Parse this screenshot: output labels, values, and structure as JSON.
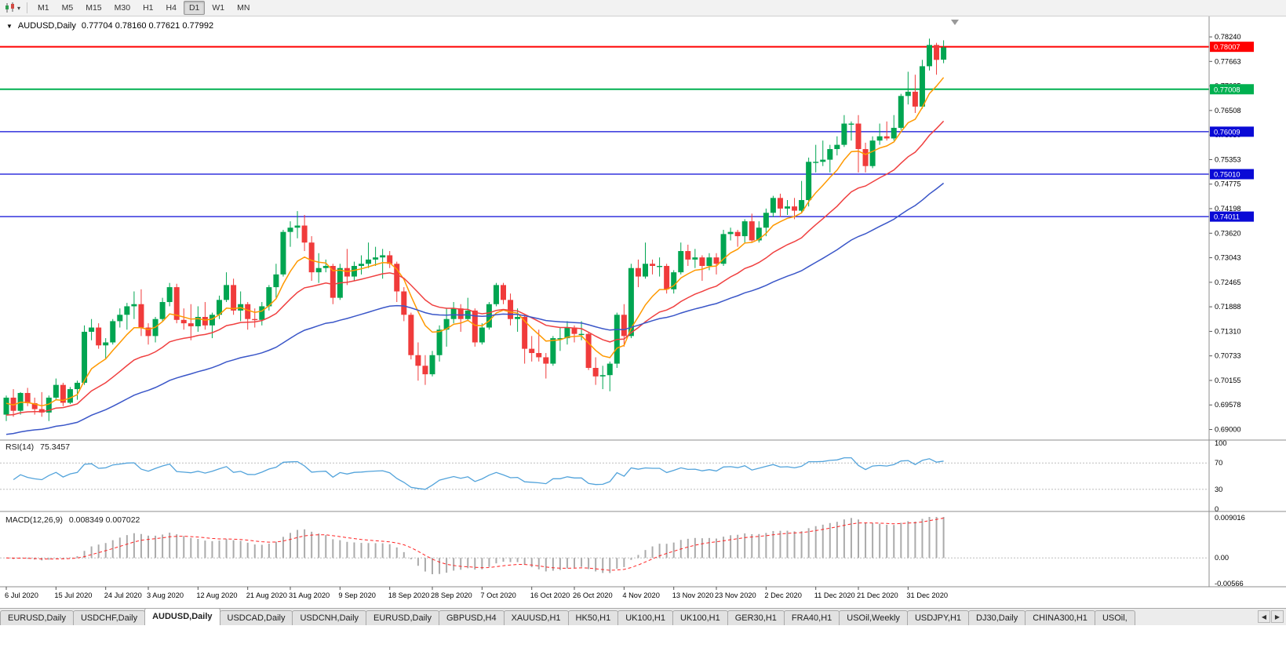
{
  "toolbar": {
    "timeframes": [
      "M1",
      "M5",
      "M15",
      "M30",
      "H1",
      "H4",
      "D1",
      "W1",
      "MN"
    ],
    "active_timeframe": "D1"
  },
  "icons": {
    "one_click_arrow": "▼",
    "chart_dropdown_caret": "▾",
    "tab_scroll_left": "◀",
    "tab_scroll_right": "▶"
  },
  "chart_data": {
    "type": "candlestick",
    "title_symbol": "AUDUSD,Daily",
    "title_ohlc": "0.77704 0.78160 0.77621 0.77992",
    "current_bar": {
      "open": "0.77704",
      "high": "0.78160",
      "low": "0.77621",
      "close": "0.77992"
    },
    "colors": {
      "up": "#00A551",
      "down": "#F03B3B",
      "separator": "#8e8e8e",
      "axis_text": "#000000",
      "level_dash": "#bdbdbd"
    },
    "y_axis": {
      "min": 0.6877,
      "max": 0.7861,
      "tick_labels": [
        "0.78240",
        "0.77663",
        "0.77085",
        "0.76508",
        "0.75930",
        "0.75353",
        "0.74775",
        "0.74198",
        "0.73620",
        "0.73043",
        "0.72465",
        "0.71888",
        "0.71310",
        "0.70733",
        "0.70155",
        "0.69578",
        "0.69000"
      ]
    },
    "x_axis": {
      "labels": [
        {
          "i": 0,
          "t": "6 Jul 2020"
        },
        {
          "i": 7,
          "t": "15 Jul 2020"
        },
        {
          "i": 14,
          "t": "24 Jul 2020"
        },
        {
          "i": 20,
          "t": "3 Aug 2020"
        },
        {
          "i": 27,
          "t": "12 Aug 2020"
        },
        {
          "i": 34,
          "t": "21 Aug 2020"
        },
        {
          "i": 40,
          "t": "31 Aug 2020"
        },
        {
          "i": 47,
          "t": "9 Sep 2020"
        },
        {
          "i": 54,
          "t": "18 Sep 2020"
        },
        {
          "i": 60,
          "t": "28 Sep 2020"
        },
        {
          "i": 67,
          "t": "7 Oct 2020"
        },
        {
          "i": 74,
          "t": "16 Oct 2020"
        },
        {
          "i": 80,
          "t": "26 Oct 2020"
        },
        {
          "i": 87,
          "t": "4 Nov 2020"
        },
        {
          "i": 94,
          "t": "13 Nov 2020"
        },
        {
          "i": 100,
          "t": "23 Nov 2020"
        },
        {
          "i": 107,
          "t": "2 Dec 2020"
        },
        {
          "i": 114,
          "t": "11 Dec 2020"
        },
        {
          "i": 120,
          "t": "21 Dec 2020"
        },
        {
          "i": 127,
          "t": "31 Dec 2020"
        }
      ]
    },
    "horizontal_lines": [
      {
        "value": 0.78007,
        "label": "0.78007",
        "color": "#FF0000",
        "width": 2
      },
      {
        "value": 0.77008,
        "label": "0.77008",
        "color": "#00B050",
        "width": 2
      },
      {
        "value": 0.76009,
        "label": "0.76009",
        "color": "#0A0AD6",
        "width": 1.3
      },
      {
        "value": 0.7501,
        "label": "0.75010",
        "color": "#0A0AD6",
        "width": 1.3
      },
      {
        "value": 0.74011,
        "label": "0.74011",
        "color": "#0A0AD6",
        "width": 1.3
      }
    ],
    "moving_averages": [
      {
        "period": 8,
        "color": "#FF9900",
        "seed": 0.6958
      },
      {
        "period": 21,
        "color": "#F04040",
        "seed": 0.693
      },
      {
        "period": 50,
        "color": "#3A56C8",
        "seed": 0.6885
      }
    ],
    "candles": [
      [
        0.6935,
        0.698,
        0.692,
        0.6975
      ],
      [
        0.6975,
        0.6995,
        0.693,
        0.6944
      ],
      [
        0.6944,
        0.6988,
        0.6935,
        0.6986
      ],
      [
        0.6986,
        0.6998,
        0.6955,
        0.6962
      ],
      [
        0.6962,
        0.6975,
        0.6935,
        0.6948
      ],
      [
        0.6948,
        0.6988,
        0.693,
        0.694
      ],
      [
        0.694,
        0.698,
        0.692,
        0.6975
      ],
      [
        0.6975,
        0.702,
        0.697,
        0.7005
      ],
      [
        0.7005,
        0.701,
        0.6955,
        0.6963
      ],
      [
        0.6963,
        0.7,
        0.696,
        0.6995
      ],
      [
        0.6995,
        0.7015,
        0.697,
        0.701
      ],
      [
        0.701,
        0.7145,
        0.7005,
        0.713
      ],
      [
        0.713,
        0.716,
        0.711,
        0.714
      ],
      [
        0.714,
        0.715,
        0.709,
        0.7098
      ],
      [
        0.7098,
        0.7115,
        0.7065,
        0.7105
      ],
      [
        0.7105,
        0.716,
        0.71,
        0.7155
      ],
      [
        0.7155,
        0.7185,
        0.714,
        0.717
      ],
      [
        0.717,
        0.7198,
        0.7135,
        0.719
      ],
      [
        0.719,
        0.7225,
        0.716,
        0.7195
      ],
      [
        0.7195,
        0.723,
        0.712,
        0.714
      ],
      [
        0.714,
        0.715,
        0.71,
        0.712
      ],
      [
        0.712,
        0.7165,
        0.7105,
        0.716
      ],
      [
        0.716,
        0.721,
        0.7155,
        0.72
      ],
      [
        0.72,
        0.7245,
        0.719,
        0.7235
      ],
      [
        0.7235,
        0.7243,
        0.715,
        0.7158
      ],
      [
        0.7158,
        0.7185,
        0.7135,
        0.715
      ],
      [
        0.715,
        0.7195,
        0.711,
        0.7143
      ],
      [
        0.7143,
        0.719,
        0.713,
        0.7165
      ],
      [
        0.7165,
        0.72,
        0.7135,
        0.7145
      ],
      [
        0.7145,
        0.7175,
        0.7115,
        0.717
      ],
      [
        0.717,
        0.7215,
        0.716,
        0.7205
      ],
      [
        0.7205,
        0.727,
        0.72,
        0.724
      ],
      [
        0.724,
        0.7255,
        0.717,
        0.718
      ],
      [
        0.718,
        0.7225,
        0.7155,
        0.7195
      ],
      [
        0.7195,
        0.72,
        0.7135,
        0.716
      ],
      [
        0.716,
        0.7185,
        0.714,
        0.7158
      ],
      [
        0.7158,
        0.72,
        0.7145,
        0.719
      ],
      [
        0.719,
        0.724,
        0.718,
        0.7235
      ],
      [
        0.7235,
        0.729,
        0.721,
        0.7265
      ],
      [
        0.7265,
        0.737,
        0.726,
        0.7365
      ],
      [
        0.7365,
        0.739,
        0.733,
        0.7375
      ],
      [
        0.7375,
        0.7414,
        0.735,
        0.738
      ],
      [
        0.738,
        0.7405,
        0.732,
        0.734
      ],
      [
        0.734,
        0.7355,
        0.725,
        0.727
      ],
      [
        0.727,
        0.7315,
        0.7245,
        0.728
      ],
      [
        0.728,
        0.73,
        0.727,
        0.7285
      ],
      [
        0.7285,
        0.729,
        0.7195,
        0.721
      ],
      [
        0.721,
        0.729,
        0.7205,
        0.728
      ],
      [
        0.728,
        0.7325,
        0.724,
        0.726
      ],
      [
        0.726,
        0.7295,
        0.725,
        0.7285
      ],
      [
        0.7285,
        0.731,
        0.7265,
        0.729
      ],
      [
        0.729,
        0.734,
        0.728,
        0.73
      ],
      [
        0.73,
        0.733,
        0.7285,
        0.7305
      ],
      [
        0.7305,
        0.7325,
        0.7255,
        0.731
      ],
      [
        0.731,
        0.732,
        0.728,
        0.729
      ],
      [
        0.729,
        0.7295,
        0.72,
        0.7225
      ],
      [
        0.7225,
        0.7235,
        0.7155,
        0.717
      ],
      [
        0.717,
        0.7175,
        0.7065,
        0.7075
      ],
      [
        0.7075,
        0.7105,
        0.7015,
        0.705
      ],
      [
        0.705,
        0.7075,
        0.7005,
        0.703
      ],
      [
        0.703,
        0.7085,
        0.7025,
        0.7075
      ],
      [
        0.7075,
        0.7145,
        0.706,
        0.7135
      ],
      [
        0.7135,
        0.7185,
        0.7095,
        0.716
      ],
      [
        0.716,
        0.72,
        0.715,
        0.7185
      ],
      [
        0.7185,
        0.7195,
        0.713,
        0.716
      ],
      [
        0.716,
        0.721,
        0.7155,
        0.718
      ],
      [
        0.718,
        0.7185,
        0.7095,
        0.7105
      ],
      [
        0.7105,
        0.715,
        0.71,
        0.714
      ],
      [
        0.714,
        0.72,
        0.7135,
        0.7195
      ],
      [
        0.7195,
        0.7245,
        0.719,
        0.724
      ],
      [
        0.724,
        0.7245,
        0.7195,
        0.7205
      ],
      [
        0.7205,
        0.722,
        0.7145,
        0.716
      ],
      [
        0.716,
        0.7185,
        0.713,
        0.7165
      ],
      [
        0.7165,
        0.717,
        0.7055,
        0.709
      ],
      [
        0.709,
        0.712,
        0.706,
        0.708
      ],
      [
        0.708,
        0.7135,
        0.706,
        0.707
      ],
      [
        0.707,
        0.708,
        0.702,
        0.7055
      ],
      [
        0.7055,
        0.712,
        0.705,
        0.7115
      ],
      [
        0.7115,
        0.714,
        0.7085,
        0.7115
      ],
      [
        0.7115,
        0.7155,
        0.71,
        0.714
      ],
      [
        0.714,
        0.7145,
        0.7105,
        0.7125
      ],
      [
        0.7125,
        0.7155,
        0.711,
        0.7125
      ],
      [
        0.7125,
        0.713,
        0.704,
        0.7045
      ],
      [
        0.7045,
        0.707,
        0.7005,
        0.7025
      ],
      [
        0.7025,
        0.705,
        0.6995,
        0.7028
      ],
      [
        0.7028,
        0.706,
        0.699,
        0.7055
      ],
      [
        0.7055,
        0.7175,
        0.7045,
        0.717
      ],
      [
        0.717,
        0.7195,
        0.7095,
        0.712
      ],
      [
        0.712,
        0.729,
        0.7115,
        0.728
      ],
      [
        0.728,
        0.73,
        0.7235,
        0.726
      ],
      [
        0.726,
        0.734,
        0.7255,
        0.729
      ],
      [
        0.729,
        0.73,
        0.7265,
        0.7285
      ],
      [
        0.7285,
        0.7305,
        0.726,
        0.7285
      ],
      [
        0.7285,
        0.729,
        0.722,
        0.723
      ],
      [
        0.723,
        0.7275,
        0.722,
        0.727
      ],
      [
        0.727,
        0.734,
        0.7265,
        0.732
      ],
      [
        0.732,
        0.7335,
        0.7285,
        0.73
      ],
      [
        0.73,
        0.7325,
        0.728,
        0.7305
      ],
      [
        0.7305,
        0.731,
        0.725,
        0.7285
      ],
      [
        0.7285,
        0.7315,
        0.7275,
        0.7305
      ],
      [
        0.7305,
        0.7315,
        0.7265,
        0.729
      ],
      [
        0.729,
        0.737,
        0.7285,
        0.736
      ],
      [
        0.736,
        0.7375,
        0.7345,
        0.7365
      ],
      [
        0.7365,
        0.737,
        0.733,
        0.7355
      ],
      [
        0.7355,
        0.7395,
        0.734,
        0.739
      ],
      [
        0.739,
        0.7408,
        0.734,
        0.7345
      ],
      [
        0.7345,
        0.739,
        0.734,
        0.7375
      ],
      [
        0.7375,
        0.742,
        0.7355,
        0.741
      ],
      [
        0.741,
        0.745,
        0.74,
        0.7445
      ],
      [
        0.7445,
        0.7455,
        0.74,
        0.742
      ],
      [
        0.742,
        0.744,
        0.7405,
        0.7425
      ],
      [
        0.7425,
        0.7445,
        0.7395,
        0.7415
      ],
      [
        0.7415,
        0.7485,
        0.741,
        0.744
      ],
      [
        0.744,
        0.754,
        0.7425,
        0.753
      ],
      [
        0.753,
        0.757,
        0.7505,
        0.753
      ],
      [
        0.753,
        0.758,
        0.752,
        0.7535
      ],
      [
        0.7535,
        0.757,
        0.7505,
        0.756
      ],
      [
        0.756,
        0.759,
        0.7545,
        0.757
      ],
      [
        0.757,
        0.764,
        0.7565,
        0.762
      ],
      [
        0.762,
        0.7625,
        0.758,
        0.762
      ],
      [
        0.762,
        0.764,
        0.7505,
        0.756
      ],
      [
        0.756,
        0.7575,
        0.7505,
        0.752
      ],
      [
        0.752,
        0.759,
        0.7515,
        0.758
      ],
      [
        0.758,
        0.762,
        0.757,
        0.759
      ],
      [
        0.759,
        0.7625,
        0.758,
        0.7585
      ],
      [
        0.7585,
        0.764,
        0.758,
        0.761
      ],
      [
        0.761,
        0.769,
        0.7605,
        0.7685
      ],
      [
        0.7685,
        0.7742,
        0.7665,
        0.7695
      ],
      [
        0.7695,
        0.7735,
        0.7645,
        0.766
      ],
      [
        0.766,
        0.777,
        0.7655,
        0.7755
      ],
      [
        0.7755,
        0.782,
        0.7745,
        0.7805
      ],
      [
        0.7805,
        0.781,
        0.7735,
        0.777
      ],
      [
        0.77704,
        0.7816,
        0.77621,
        0.77992
      ]
    ],
    "rsi": {
      "label": "RSI(14)",
      "current": "75.3457",
      "period": 14,
      "levels": [
        70,
        30
      ],
      "axis_labels": [
        "100",
        "70",
        "30",
        "0"
      ],
      "range": [
        0,
        100
      ],
      "line_color": "#52A3DB"
    },
    "macd": {
      "label": "MACD(12,26,9)",
      "current": "0.008349 0.007022",
      "fast": 12,
      "slow": 26,
      "signal": 9,
      "max": 0.009016,
      "min": -0.00566,
      "axis_labels": [
        "0.009016",
        "0.00",
        "-0.00566"
      ],
      "hist_color": "#ABABAB",
      "signal_color": "#FF2222"
    }
  },
  "tabs": {
    "active_index": 2,
    "items": [
      "EURUSD,Daily",
      "USDCHF,Daily",
      "AUDUSD,Daily",
      "USDCAD,Daily",
      "USDCNH,Daily",
      "EURUSD,Daily",
      "GBPUSD,H4",
      "XAUUSD,H1",
      "HK50,H1",
      "UK100,H1",
      "UK100,H1",
      "GER30,H1",
      "FRA40,H1",
      "USOil,Weekly",
      "USDJPY,H1",
      "DJ30,Daily",
      "CHINA300,H1",
      "USOil,"
    ]
  }
}
